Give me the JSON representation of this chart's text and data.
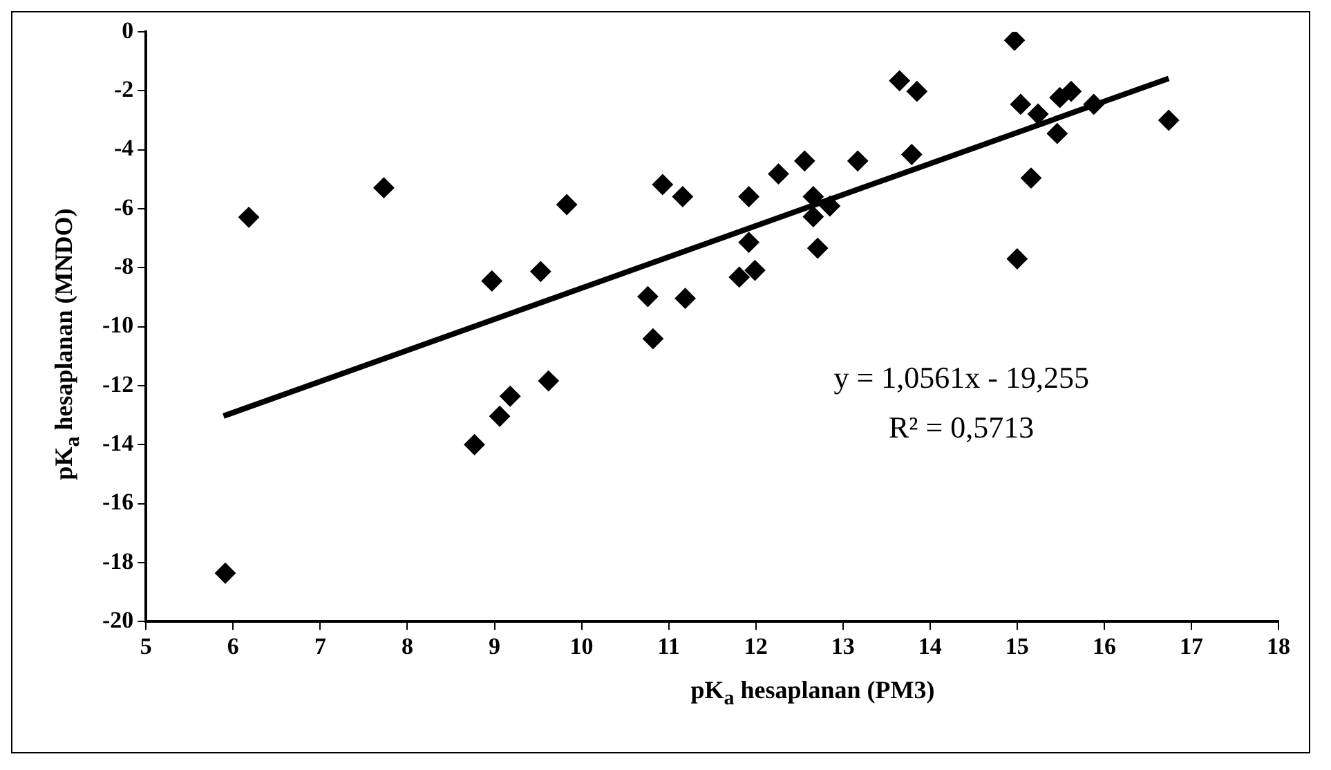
{
  "chart_data": {
    "type": "scatter",
    "xlabel": "pK$_{a}$ hesaplanan (PM3)",
    "ylabel": "pK$_{a}$ hesaplanan (MNDO)",
    "xlim": [
      5,
      18
    ],
    "xticks": [
      5,
      6,
      7,
      8,
      9,
      10,
      11,
      12,
      13,
      14,
      15,
      16,
      17,
      18
    ],
    "ylim": [
      -20,
      0
    ],
    "yticks": [
      -20,
      -18,
      -16,
      -14,
      -12,
      -10,
      -8,
      -6,
      -4,
      -2,
      0
    ],
    "grid": false,
    "legend": false,
    "marker": "diamond",
    "annotations": [
      "y = 1,0561x - 19,255",
      "R² = 0,5713"
    ],
    "series": [
      {
        "type": "scatter",
        "color": "#000000",
        "x": [
          5.91,
          6.18,
          7.73,
          8.97,
          8.77,
          9.06,
          9.18,
          9.53,
          9.62,
          9.83,
          10.93,
          11.16,
          10.76,
          10.82,
          11.19,
          11.92,
          12.26,
          12.56,
          13.17,
          13.79,
          12.66,
          12.66,
          12.85,
          11.92,
          11.81,
          11.99,
          12.71,
          13.65,
          13.85,
          14.97,
          15.04,
          15.24,
          15.16,
          15.46,
          15.49,
          15.62,
          15.88,
          16.74,
          15.0
        ],
        "values": [
          -18.36,
          -6.29,
          -5.29,
          -8.45,
          -14.0,
          -13.04,
          -12.36,
          -8.13,
          -11.84,
          -5.86,
          -5.18,
          -5.59,
          -8.98,
          -10.41,
          -9.04,
          -5.59,
          -4.82,
          -4.38,
          -4.38,
          -4.16,
          -5.59,
          -6.27,
          -5.91,
          -7.14,
          -8.32,
          -8.09,
          -7.34,
          -1.66,
          -2.02,
          -0.29,
          -2.46,
          -2.79,
          -4.96,
          -3.45,
          -2.23,
          -2.02,
          -2.46,
          -3.0,
          -7.7
        ]
      },
      {
        "type": "line",
        "color": "#000000",
        "line_style": "solid",
        "marker": "none",
        "x": [
          5.89,
          16.74
        ],
        "values": [
          -13.03,
          -1.58
        ]
      }
    ]
  }
}
